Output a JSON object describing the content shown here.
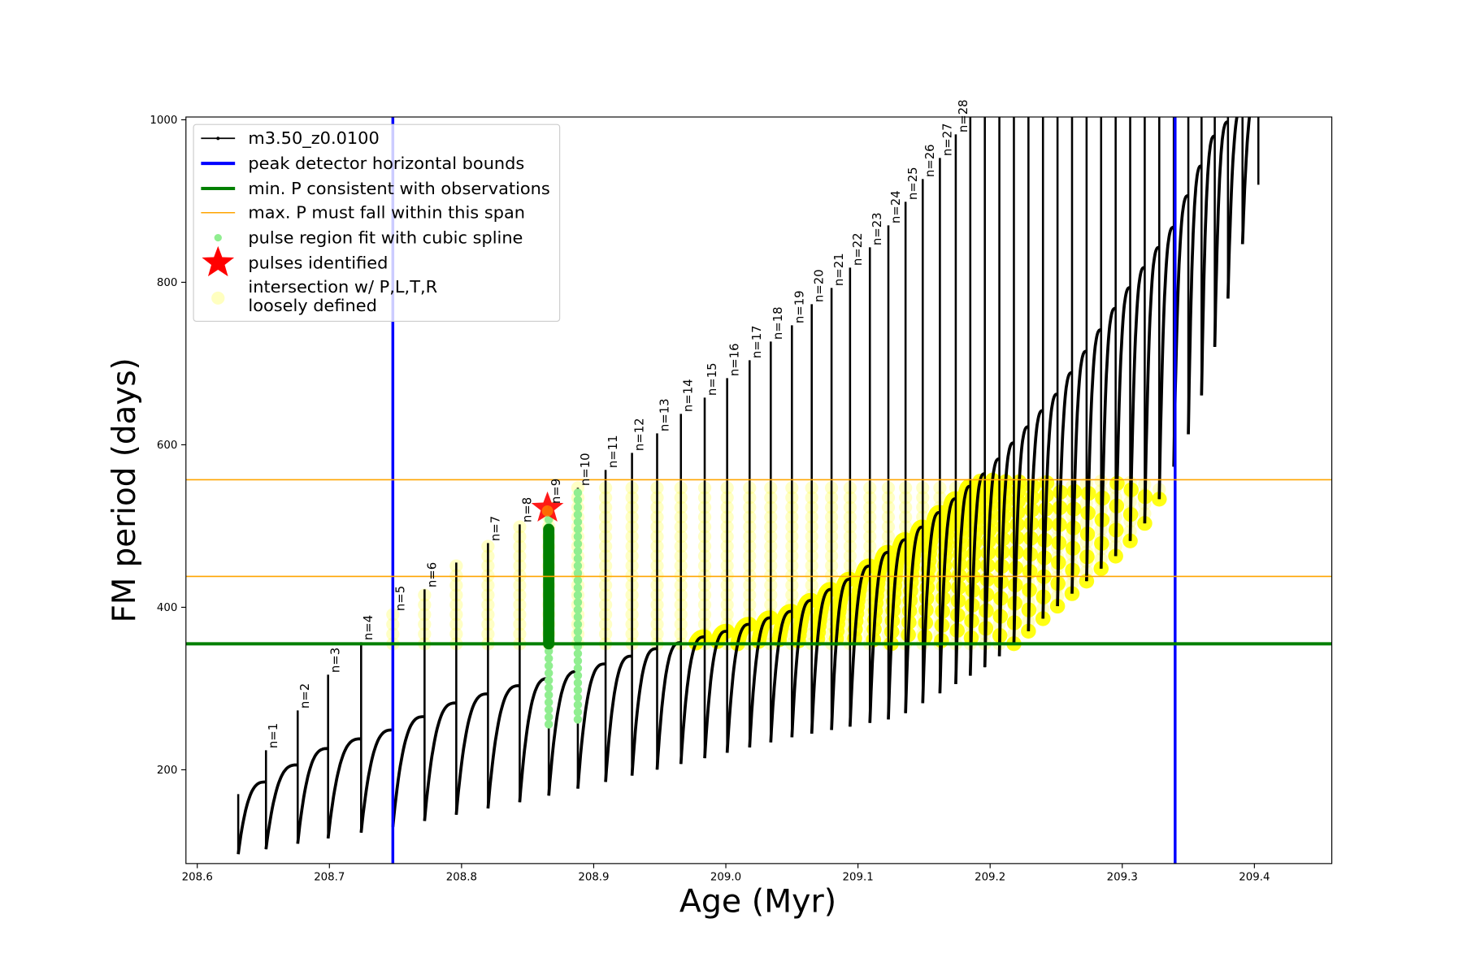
{
  "chart_data": {
    "type": "line",
    "xlabel": "Age (Myr)",
    "ylabel": "FM period (days)",
    "xlim": [
      208.591,
      209.459
    ],
    "ylim": [
      85,
      1000
    ],
    "xticks": [
      "208.6",
      "208.7",
      "208.8",
      "208.9",
      "209.0",
      "209.1",
      "209.2",
      "209.3",
      "209.4"
    ],
    "yticks": [
      "200",
      "400",
      "600",
      "800",
      "1000"
    ],
    "legend_position": "top-left",
    "legend": [
      {
        "label": "m3.50_z0.0100",
        "kind": "line-dot",
        "color": "#000000"
      },
      {
        "label": "peak detector horizontal bounds",
        "kind": "line",
        "color": "#0000ff"
      },
      {
        "label": "min. P consistent with observations",
        "kind": "line",
        "color": "#008000"
      },
      {
        "label": "max. P must fall within this span",
        "kind": "thin-line",
        "color": "#ffa500"
      },
      {
        "label": "pulse region fit with cubic spline",
        "kind": "dot",
        "color": "#90ee90"
      },
      {
        "label": "pulses identified",
        "kind": "star",
        "color": "#ff0000"
      },
      {
        "label": "intersection w/ P,L,T,R",
        "label2": "loosely defined",
        "kind": "circle",
        "color": "#ffffc0"
      }
    ],
    "peak_detector_bounds": [
      208.748,
      209.34
    ],
    "min_period": 355,
    "max_period_span": [
      438,
      557
    ],
    "series_name": "m3.50_z0.0100",
    "pulses": [
      {
        "age": 208.631,
        "top": 170,
        "n": ""
      },
      {
        "age": 208.652,
        "top": 224,
        "n": "n=1"
      },
      {
        "age": 208.676,
        "top": 273,
        "n": "n=2"
      },
      {
        "age": 208.699,
        "top": 317,
        "n": "n=3"
      },
      {
        "age": 208.724,
        "top": 357,
        "n": "n=4"
      },
      {
        "age": 208.748,
        "top": 393,
        "n": "n=5"
      },
      {
        "age": 208.772,
        "top": 422,
        "n": "n=6"
      },
      {
        "age": 208.796,
        "top": 455,
        "n": ""
      },
      {
        "age": 208.82,
        "top": 479,
        "n": "n=7"
      },
      {
        "age": 208.844,
        "top": 502,
        "n": "n=8"
      },
      {
        "age": 208.866,
        "top": 525,
        "n": "n=9"
      },
      {
        "age": 208.888,
        "top": 547,
        "n": "n=10"
      },
      {
        "age": 208.909,
        "top": 569,
        "n": "n=11"
      },
      {
        "age": 208.929,
        "top": 590,
        "n": "n=12"
      },
      {
        "age": 208.948,
        "top": 614,
        "n": "n=13"
      },
      {
        "age": 208.966,
        "top": 638,
        "n": "n=14"
      },
      {
        "age": 208.984,
        "top": 658,
        "n": "n=15"
      },
      {
        "age": 209.001,
        "top": 682,
        "n": "n=16"
      },
      {
        "age": 209.018,
        "top": 704,
        "n": "n=17"
      },
      {
        "age": 209.034,
        "top": 727,
        "n": "n=18"
      },
      {
        "age": 209.05,
        "top": 747,
        "n": "n=19"
      },
      {
        "age": 209.065,
        "top": 773,
        "n": "n=20"
      },
      {
        "age": 209.08,
        "top": 793,
        "n": "n=21"
      },
      {
        "age": 209.094,
        "top": 818,
        "n": "n=22"
      },
      {
        "age": 209.109,
        "top": 843,
        "n": "n=23"
      },
      {
        "age": 209.123,
        "top": 870,
        "n": "n=24"
      },
      {
        "age": 209.136,
        "top": 899,
        "n": "n=25"
      },
      {
        "age": 209.149,
        "top": 927,
        "n": "n=26"
      },
      {
        "age": 209.162,
        "top": 953,
        "n": "n=27"
      },
      {
        "age": 209.174,
        "top": 982,
        "n": "n=28"
      },
      {
        "age": 209.185,
        "top": 1100,
        "n": ""
      },
      {
        "age": 209.196,
        "top": 1100,
        "n": ""
      },
      {
        "age": 209.207,
        "top": 1100,
        "n": ""
      },
      {
        "age": 209.218,
        "top": 1100,
        "n": ""
      },
      {
        "age": 209.229,
        "top": 1100,
        "n": ""
      },
      {
        "age": 209.24,
        "top": 1100,
        "n": ""
      },
      {
        "age": 209.251,
        "top": 1100,
        "n": ""
      },
      {
        "age": 209.262,
        "top": 1100,
        "n": ""
      },
      {
        "age": 209.273,
        "top": 1100,
        "n": ""
      },
      {
        "age": 209.284,
        "top": 1100,
        "n": ""
      },
      {
        "age": 209.295,
        "top": 1100,
        "n": ""
      },
      {
        "age": 209.306,
        "top": 1100,
        "n": ""
      },
      {
        "age": 209.317,
        "top": 1100,
        "n": ""
      },
      {
        "age": 209.328,
        "top": 1100,
        "n": ""
      },
      {
        "age": 209.339,
        "top": 1100,
        "n": ""
      },
      {
        "age": 209.35,
        "top": 1100,
        "n": ""
      },
      {
        "age": 209.36,
        "top": 1100,
        "n": ""
      },
      {
        "age": 209.37,
        "top": 1100,
        "n": ""
      },
      {
        "age": 209.38,
        "top": 1100,
        "n": ""
      },
      {
        "age": 209.391,
        "top": 1100,
        "n": ""
      },
      {
        "age": 209.403,
        "top": 1100,
        "n": ""
      }
    ],
    "trough_curve": [
      [
        208.63,
        96
      ],
      [
        208.75,
        130
      ],
      [
        208.85,
        162
      ],
      [
        208.95,
        201
      ],
      [
        209.05,
        240
      ],
      [
        209.13,
        264
      ],
      [
        209.2,
        330
      ],
      [
        209.25,
        400
      ],
      [
        209.3,
        470
      ],
      [
        209.323,
        515
      ],
      [
        209.355,
        631
      ],
      [
        209.38,
        780
      ],
      [
        209.403,
        920
      ]
    ],
    "arc_peak_curve": [
      [
        208.63,
        150
      ],
      [
        208.652,
        185
      ],
      [
        208.7,
        227
      ],
      [
        208.75,
        250
      ],
      [
        208.8,
        285
      ],
      [
        208.85,
        306
      ],
      [
        208.9,
        326
      ],
      [
        208.95,
        350
      ],
      [
        209.0,
        370
      ],
      [
        209.05,
        395
      ],
      [
        209.1,
        440
      ],
      [
        209.15,
        500
      ],
      [
        209.2,
        570
      ],
      [
        209.25,
        660
      ],
      [
        209.3,
        780
      ],
      [
        209.34,
        870
      ],
      [
        209.37,
        980
      ],
      [
        209.41,
        1050
      ]
    ],
    "spline_fits": [
      {
        "age": 208.866,
        "from": 256,
        "to": 520
      },
      {
        "age": 208.888,
        "from": 262,
        "to": 547
      }
    ],
    "identified_region": {
      "age": 208.866,
      "from": 355,
      "to": 496
    },
    "pulse_identified": {
      "age": 208.865,
      "period": 522
    }
  }
}
